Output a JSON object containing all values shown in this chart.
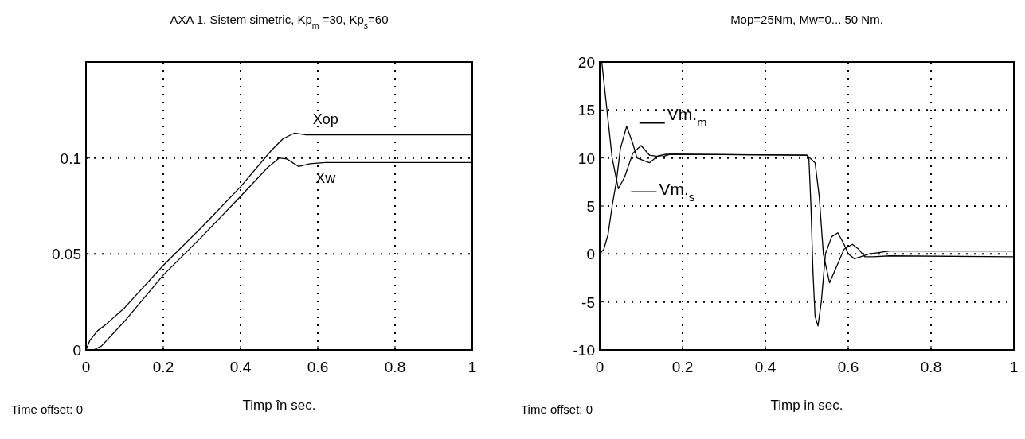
{
  "chart_data": [
    {
      "type": "line",
      "title": "AXA 1.  Sistem simetric, Kp$_{m}$ =30, Kp$_{s}$=60",
      "xlabel": "Timp în sec.",
      "annotations": [
        "Time offset: 0"
      ],
      "xlim": [
        0,
        1
      ],
      "xticks": [
        0,
        0.2,
        {
          "value": 0.4,
          "label": "0.4"
        },
        0.6,
        0.8,
        1
      ],
      "ylim": [
        0,
        0.15
      ],
      "yticks": [
        0,
        0.05,
        0.1
      ],
      "grid": true,
      "line_style": "solid",
      "series": [
        {
          "name": "Xop",
          "color": "#000000",
          "x": [
            0,
            0.01,
            0.03,
            0.05,
            0.1,
            0.2,
            0.3,
            0.4,
            0.48,
            0.51,
            0.54,
            0.57,
            1
          ],
          "values": [
            0,
            0.005,
            0.01,
            0.013,
            0.022,
            0.044,
            0.064,
            0.085,
            0.104,
            0.11,
            0.113,
            0.112,
            0.112
          ]
        },
        {
          "name": "Xw",
          "color": "#000000",
          "x": [
            0,
            0.02,
            0.04,
            0.1,
            0.2,
            0.3,
            0.4,
            0.47,
            0.5,
            0.52,
            0.55,
            0.58,
            0.62,
            1
          ],
          "values": [
            0,
            0,
            0.002,
            0.015,
            0.039,
            0.059,
            0.08,
            0.095,
            0.1,
            0.0995,
            0.0956,
            0.097,
            0.0976,
            0.0976
          ]
        }
      ]
    },
    {
      "type": "line",
      "title": "Mop=25Nm, Mw=0... 50 Nm.",
      "xlabel": "Timp in sec.",
      "annotations": [
        "Time offset: 0"
      ],
      "xlim": [
        0,
        1
      ],
      "xticks": [
        0,
        0.2,
        0.4,
        0.6,
        0.8,
        1
      ],
      "ylim": [
        -10,
        20
      ],
      "yticks": [
        -10,
        -5,
        0,
        5,
        10,
        15,
        20
      ],
      "grid": true,
      "legend": "top left",
      "line_style": "solid",
      "series": [
        {
          "name": "Vm.$_{m}$",
          "color": "#000000",
          "x": [
            0,
            0.01,
            0.02,
            0.03,
            0.04,
            0.05,
            0.065,
            0.08,
            0.09,
            0.12,
            0.14,
            0.16,
            0.5,
            0.505,
            0.51,
            0.515,
            0.52,
            0.527,
            0.535,
            0.545,
            0.56,
            0.575,
            0.59,
            0.6,
            0.615,
            0.63,
            0.65,
            0.7,
            1
          ],
          "values": [
            0,
            0.5,
            2,
            5,
            7.5,
            11,
            13.3,
            11.5,
            10,
            9.5,
            10.2,
            10.4,
            10.3,
            10,
            5,
            -2,
            -6.5,
            -7.5,
            -5,
            0,
            1.8,
            2.2,
            1,
            0,
            -0.5,
            -0.3,
            0,
            0.3,
            0.3
          ]
        },
        {
          "name": "Vm.$_{s}$",
          "color": "#000000",
          "x": [
            0,
            0.005,
            0.015,
            0.025,
            0.03,
            0.045,
            0.06,
            0.08,
            0.1,
            0.12,
            0.15,
            0.17,
            0.5,
            0.52,
            0.53,
            0.54,
            0.555,
            0.57,
            0.59,
            0.61,
            0.625,
            0.64,
            0.66,
            0.7,
            1
          ],
          "values": [
            20,
            20,
            16,
            12,
            10,
            6.8,
            8,
            10.5,
            11.3,
            10.3,
            10.1,
            10.4,
            10.3,
            9.5,
            6,
            0,
            -3,
            -1.5,
            0.5,
            1,
            0.5,
            -0.3,
            -0.3,
            -0.2,
            -0.3
          ]
        }
      ]
    }
  ]
}
